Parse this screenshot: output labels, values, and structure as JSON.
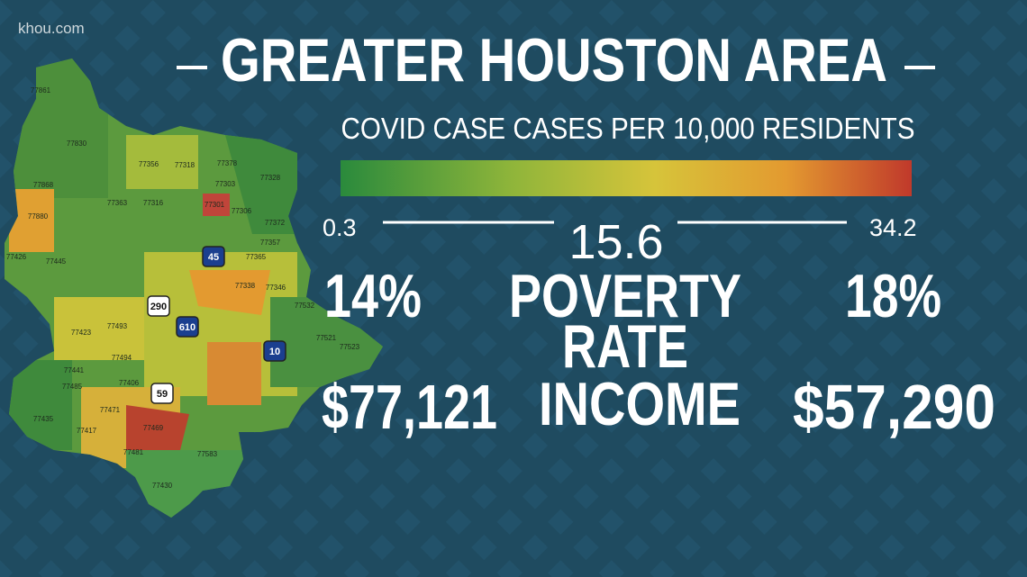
{
  "watermark": "khou.com",
  "title": "GREATER HOUSTON AREA",
  "subtitle": "COVID CASE CASES PER 10,000 RESIDENTS",
  "legend": {
    "min": "0.3",
    "mid": "15.6",
    "max": "34.2"
  },
  "stats": {
    "poverty": {
      "left": "14%",
      "label_line1": "POVERTY",
      "label_line2": "RATE",
      "right": "18%"
    },
    "income": {
      "left": "$77,121",
      "label": "INCOME",
      "right": "$57,290"
    }
  },
  "map": {
    "zip_labels": [
      "77861",
      "77830",
      "77356",
      "77318",
      "77378",
      "77328",
      "77868",
      "77363",
      "77316",
      "77303",
      "77301",
      "77306",
      "77372",
      "77880",
      "77357",
      "77426",
      "77445",
      "77365",
      "77338",
      "77346",
      "77532",
      "77423",
      "77493",
      "77521",
      "77523",
      "77441",
      "77494",
      "77406",
      "77485",
      "77471",
      "77469",
      "77417",
      "77583",
      "77481",
      "77430",
      "77435"
    ],
    "highway_shields": [
      "45",
      "610",
      "290",
      "59",
      "10"
    ]
  }
}
